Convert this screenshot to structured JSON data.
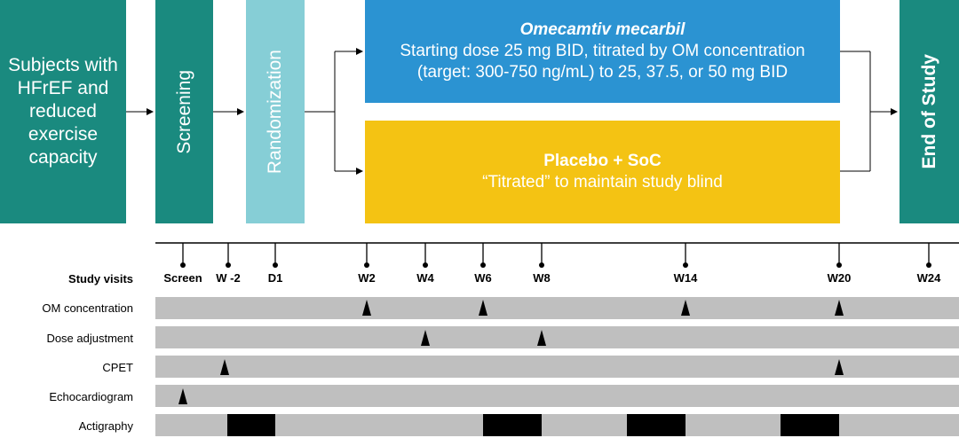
{
  "boxes": {
    "subjects": "Subjects with HFrEF and reduced exercise capacity",
    "screening": "Screening",
    "randomization": "Randomization",
    "om_title": "Omecamtiv mecarbil",
    "om_line1": "Starting dose 25 mg BID, titrated by OM concentration",
    "om_line2": "(target: 300-750 ng/mL) to 25, 37.5, or 50 mg BID",
    "placebo_title": "Placebo + SoC",
    "placebo_sub": "“Titrated” to maintain study blind",
    "end": "End of Study"
  },
  "timeline": {
    "header": "Study visits",
    "visits": [
      "Screen",
      "W -2",
      "D1",
      "W2",
      "W4",
      "W6",
      "W8",
      "W14",
      "W20",
      "W24"
    ]
  },
  "rows": {
    "om": "OM concentration",
    "dose": "Dose adjustment",
    "cpet": "CPET",
    "echo": "Echocardiogram",
    "acti": "Actigraphy"
  },
  "colors": {
    "teal": "#1a8a7f",
    "light_teal": "#86ced6",
    "blue": "#2b93d2",
    "yellow": "#f4c313",
    "gray": "#bfbfbf"
  }
}
